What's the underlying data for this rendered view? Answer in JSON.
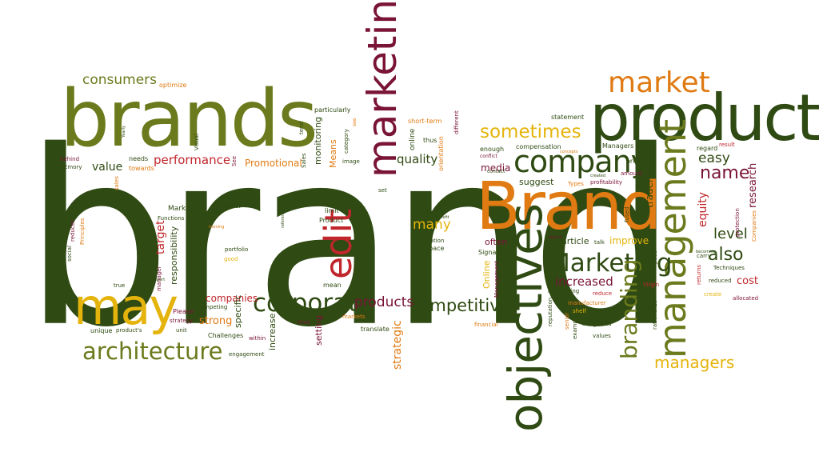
{
  "palette": {
    "dark_green": "#2f4a12",
    "olive": "#6b7a1c",
    "orange": "#e07a12",
    "yellow": "#e5b40c",
    "maroon": "#7a1437",
    "red": "#c0262c"
  },
  "words": {
    "brand": "brand",
    "brands": "brands",
    "product": "product",
    "brand_cap": "Brand",
    "marketing": "marketing",
    "objectives": "objectives",
    "management": "management",
    "may": "may",
    "edit": "edit",
    "market": "market",
    "company": "company",
    "architecture": "architecture",
    "corporate": "corporate",
    "marketing_cap": "Marketing",
    "sometimes": "sometimes",
    "consumers": "consumers",
    "competitive": "competitive",
    "branding": "branding",
    "managers": "managers",
    "products": "products",
    "performance": "performance",
    "also": "also",
    "name": "name",
    "level": "level",
    "easy": "easy",
    "increased": "increased",
    "many": "many",
    "quality": "quality",
    "value": "value",
    "companies": "companies",
    "strong": "strong",
    "target": "target",
    "equity": "equity",
    "research": "research",
    "trademark": "trademark",
    "responsibility": "responsibility",
    "strategic": "strategic",
    "Promotional": "Promotional",
    "improve": "improve",
    "article": "article",
    "often": "often",
    "suggest": "suggest",
    "media": "media",
    "cost": "cost",
    "gain": "gain",
    "Means": "Means",
    "monitoring": "monitoring",
    "specific": "specific",
    "increase": "increase",
    "setting": "setting",
    "Online": "Online",
    "online": "online",
    "optimize": "optimize",
    "particularly": "particularly",
    "statement": "statement",
    "short_term": "short-term",
    "different": "different",
    "orientation": "orientation",
    "thus": "thus",
    "enough": "enough",
    "compensation": "compensation",
    "Managers": "Managers",
    "regard": "regard",
    "result": "result",
    "original": "original",
    "amount": "amount",
    "profitability": "profitability",
    "Types": "Types",
    "Visual": "Visual",
    "See": "See",
    "Sales": "Sales",
    "category": "category",
    "image": "image",
    "tend": "tend",
    "needs": "needs",
    "towards": "towards",
    "behind": "behind",
    "Emory": "Emory",
    "sales": "sales",
    "reducer": "reducer",
    "Principles": "Principles",
    "Functions": "Functions",
    "Market": "Market",
    "and_or": "and/or",
    "limit": "limit",
    "Product": "Product",
    "must": "must",
    "information": "information",
    "space": "space",
    "set": "set",
    "portfolio": "portfolio",
    "good": "good",
    "social": "social",
    "true": "true",
    "manager": "manager",
    "Please": "Please",
    "competing": "competing",
    "strategy": "strategy",
    "unit": "unit",
    "unique": "unique",
    "products_s": "product's",
    "Challenges": "Challenges",
    "within": "within",
    "engagement": "engagement",
    "mean": "mean",
    "time": "time",
    "markets": "markets",
    "translate": "translate",
    "Signal": "Signal",
    "Management": "Management",
    "advertising": "advertising",
    "reduce": "reduce",
    "manufacturer": "manufacturer",
    "shelf": "shelf",
    "Source": "Source",
    "talk": "talk",
    "reputation": "reputation",
    "senior": "senior",
    "example": "example",
    "Integrated": "Integrated",
    "values": "values",
    "financial": "financial",
    "Virgin": "Virgin",
    "rationalize": "rationalize",
    "pace": "pace",
    "create": "create",
    "returns": "returns",
    "reduced": "reduced",
    "Techniques": "Techniques",
    "allocated": "allocated",
    "carry": "carry",
    "protection": "protection",
    "Companies": "Companies",
    "fused": "fused",
    "conflict": "conflict",
    "contact": "contact",
    "see": "see",
    "benefit": "benefit",
    "references": "references",
    "support": "support",
    "training": "training",
    "Yearly": "Yearly",
    "becoming": "becoming",
    "search": "search",
    "concepts": "concepts",
    "created": "created",
    "missed": "missed"
  }
}
